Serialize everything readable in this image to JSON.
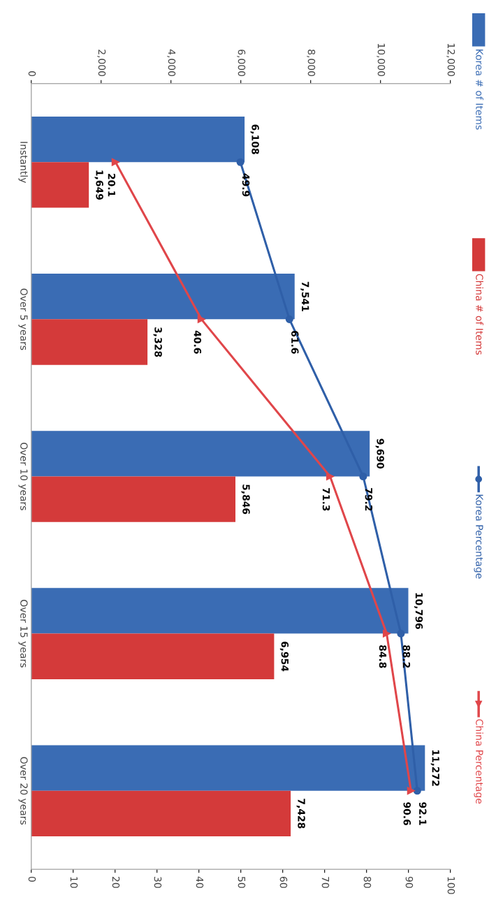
{
  "chart_data": {
    "type": "bar",
    "orientation": "horizontal",
    "categories": [
      "Instantly",
      "Over 5 years",
      "Over 10 years",
      "Over 15 years",
      "Over 20 years"
    ],
    "series": [
      {
        "name": "Korea # of Items",
        "type": "bar",
        "color": "#3a6cb4",
        "values": [
          6108,
          7541,
          9690,
          10796,
          11272
        ],
        "value_labels": [
          "6,108",
          "7,541",
          "9,690",
          "10,796",
          "11,272"
        ]
      },
      {
        "name": "China # of Items",
        "type": "bar",
        "color": "#d43a3a",
        "values": [
          1649,
          3328,
          5846,
          6954,
          7428
        ],
        "value_labels": [
          "1,649",
          "3,328",
          "5,846",
          "6,954",
          "7,428"
        ]
      },
      {
        "name": "Korea Percentage",
        "type": "line",
        "axis": "x2",
        "marker": "circle",
        "color": "#2f5fa8",
        "values": [
          49.9,
          61.6,
          79.2,
          88.2,
          92.1
        ]
      },
      {
        "name": "China Percentage",
        "type": "line",
        "axis": "x2",
        "marker": "triangle",
        "color": "#e0464a",
        "values": [
          20.1,
          40.6,
          71.3,
          84.8,
          90.6
        ]
      }
    ],
    "xlim": [
      0,
      12000
    ],
    "xticks": [
      0,
      {
        "value": 2000,
        "label": "2,000"
      },
      {
        "value": 4000,
        "label": "4,000"
      },
      {
        "value": 6000,
        "label": "6,000"
      },
      {
        "value": 8000,
        "label": "8,000"
      },
      {
        "value": 10000,
        "label": "10,000"
      },
      {
        "value": 12000,
        "label": "12,000"
      }
    ],
    "x2lim": [
      0,
      100
    ],
    "x2ticks": [
      0,
      10,
      20,
      30,
      40,
      50,
      60,
      70,
      80,
      90,
      100
    ],
    "data_labels": true,
    "legend": "right",
    "grid": false
  }
}
